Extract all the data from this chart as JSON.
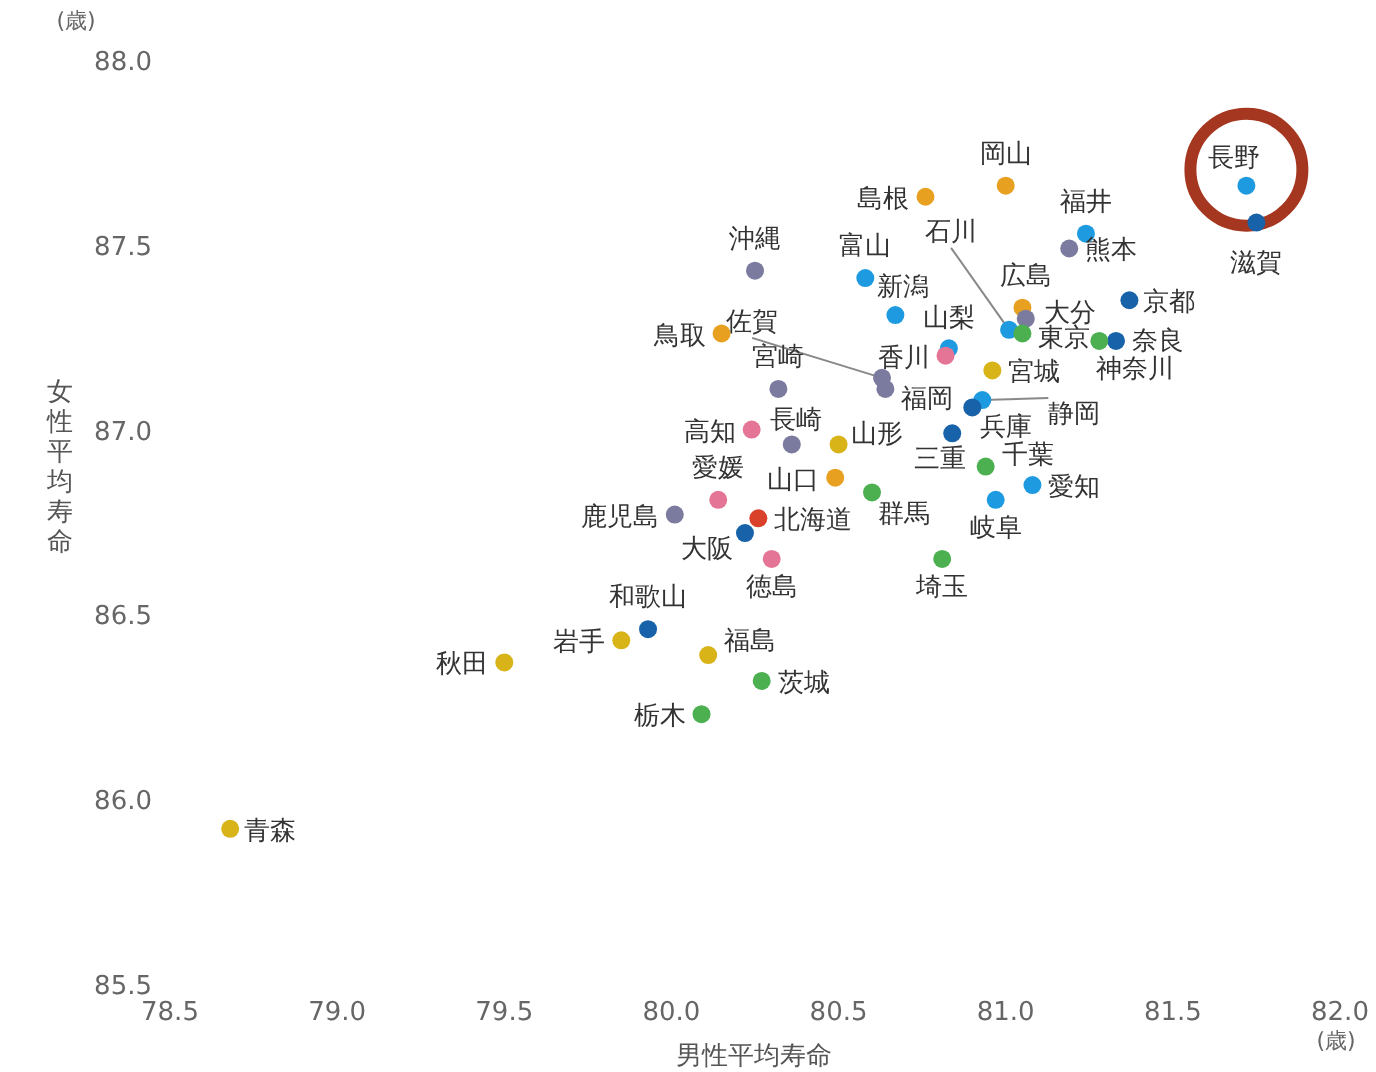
{
  "chart_data": {
    "type": "scatter",
    "xlabel": "男性平均寿命",
    "ylabel": "女性平均寿命",
    "xlim": [
      78.5,
      82.0
    ],
    "ylim": [
      85.5,
      88.0
    ],
    "xticks": [
      {
        "value": 78.5,
        "label": "78.5"
      },
      {
        "value": 79,
        "label": "79.0"
      },
      {
        "value": 79.5,
        "label": "79.5"
      },
      {
        "value": 80,
        "label": "80.0"
      },
      {
        "value": 80.5,
        "label": "80.5"
      },
      {
        "value": 81,
        "label": "81.0"
      },
      {
        "value": 81.5,
        "label": "81.5"
      },
      {
        "value": 82,
        "label": "82.0"
      }
    ],
    "yticks": [
      {
        "value": 85.5,
        "label": "85.5"
      },
      {
        "value": 86,
        "label": "86.0"
      },
      {
        "value": 86.5,
        "label": "86.5"
      },
      {
        "value": 87,
        "label": "87.0"
      },
      {
        "value": 87.5,
        "label": "87.5"
      },
      {
        "value": 88,
        "label": "88.0"
      }
    ],
    "annotations": [
      "(歳)",
      "(歳)"
    ],
    "grid": false,
    "marker": "circle",
    "series": [
      {
        "name": "長野",
        "color": "#1e9be0",
        "x": [
          81.72
        ],
        "values": [
          87.66
        ]
      },
      {
        "name": "滋賀",
        "color": "#1762a8",
        "x": [
          81.75
        ],
        "values": [
          87.56
        ]
      },
      {
        "name": "岡山",
        "color": "#e8a020",
        "x": [
          81.0
        ],
        "values": [
          87.66
        ]
      },
      {
        "name": "島根",
        "color": "#e8a020",
        "x": [
          80.76
        ],
        "values": [
          87.63
        ]
      },
      {
        "name": "福井",
        "color": "#1e9be0",
        "x": [
          81.24
        ],
        "values": [
          87.53
        ]
      },
      {
        "name": "熊本",
        "color": "#7a7b9e",
        "x": [
          81.19
        ],
        "values": [
          87.49
        ]
      },
      {
        "name": "石川",
        "color": "#1e9be0",
        "x": [
          81.01
        ],
        "values": [
          87.27
        ]
      },
      {
        "name": "広島",
        "color": "#e8a020",
        "x": [
          81.05
        ],
        "values": [
          87.33
        ]
      },
      {
        "name": "大分",
        "color": "#7a7b9e",
        "x": [
          81.06
        ],
        "values": [
          87.3
        ]
      },
      {
        "name": "東京",
        "color": "#4cb050",
        "x": [
          81.05
        ],
        "values": [
          87.26
        ]
      },
      {
        "name": "京都",
        "color": "#1762a8",
        "x": [
          81.37
        ],
        "values": [
          87.35
        ]
      },
      {
        "name": "奈良",
        "color": "#1762a8",
        "x": [
          81.33
        ],
        "values": [
          87.24
        ]
      },
      {
        "name": "神奈川",
        "color": "#4cb050",
        "x": [
          81.28
        ],
        "values": [
          87.24
        ]
      },
      {
        "name": "山梨",
        "color": "#1e9be0",
        "x": [
          80.83
        ],
        "values": [
          87.22
        ]
      },
      {
        "name": "香川",
        "color": "#e57597",
        "x": [
          80.82
        ],
        "values": [
          87.2
        ]
      },
      {
        "name": "宮城",
        "color": "#d8b419",
        "x": [
          80.96
        ],
        "values": [
          87.16
        ]
      },
      {
        "name": "福岡",
        "color": "#7a7b9e",
        "x": [
          80.64
        ],
        "values": [
          87.11
        ]
      },
      {
        "name": "佐賀",
        "color": "#7a7b9e",
        "x": [
          80.63
        ],
        "values": [
          87.14
        ]
      },
      {
        "name": "静岡",
        "color": "#1e9be0",
        "x": [
          80.93
        ],
        "values": [
          87.08
        ]
      },
      {
        "name": "兵庫",
        "color": "#1762a8",
        "x": [
          80.9
        ],
        "values": [
          87.06
        ]
      },
      {
        "name": "三重",
        "color": "#1762a8",
        "x": [
          80.84
        ],
        "values": [
          86.99
        ]
      },
      {
        "name": "千葉",
        "color": "#4cb050",
        "x": [
          80.94
        ],
        "values": [
          86.9
        ]
      },
      {
        "name": "愛知",
        "color": "#1e9be0",
        "x": [
          81.08
        ],
        "values": [
          86.85
        ]
      },
      {
        "name": "岐阜",
        "color": "#1e9be0",
        "x": [
          80.97
        ],
        "values": [
          86.81
        ]
      },
      {
        "name": "新潟",
        "color": "#1e9be0",
        "x": [
          80.67
        ],
        "values": [
          87.31
        ]
      },
      {
        "name": "富山",
        "color": "#1e9be0",
        "x": [
          80.58
        ],
        "values": [
          87.41
        ]
      },
      {
        "name": "沖縄",
        "color": "#7a7b9e",
        "x": [
          80.25
        ],
        "values": [
          87.43
        ]
      },
      {
        "name": "鳥取",
        "color": "#e8a020",
        "x": [
          80.15
        ],
        "values": [
          87.26
        ]
      },
      {
        "name": "宮崎",
        "color": "#7a7b9e",
        "x": [
          80.32
        ],
        "values": [
          87.11
        ]
      },
      {
        "name": "高知",
        "color": "#e57597",
        "x": [
          80.24
        ],
        "values": [
          87.0
        ]
      },
      {
        "name": "長崎",
        "color": "#7a7b9e",
        "x": [
          80.36
        ],
        "values": [
          86.96
        ]
      },
      {
        "name": "山形",
        "color": "#d8b419",
        "x": [
          80.5
        ],
        "values": [
          86.96
        ]
      },
      {
        "name": "山口",
        "color": "#e8a020",
        "x": [
          80.49
        ],
        "values": [
          86.87
        ]
      },
      {
        "name": "愛媛",
        "color": "#e57597",
        "x": [
          80.14
        ],
        "values": [
          86.81
        ]
      },
      {
        "name": "群馬",
        "color": "#4cb050",
        "x": [
          80.6
        ],
        "values": [
          86.83
        ]
      },
      {
        "name": "鹿児島",
        "color": "#7a7b9e",
        "x": [
          80.01
        ],
        "values": [
          86.77
        ]
      },
      {
        "name": "北海道",
        "color": "#d9412b",
        "x": [
          80.26
        ],
        "values": [
          86.76
        ]
      },
      {
        "name": "大阪",
        "color": "#1762a8",
        "x": [
          80.22
        ],
        "values": [
          86.72
        ]
      },
      {
        "name": "徳島",
        "color": "#e57597",
        "x": [
          80.3
        ],
        "values": [
          86.65
        ]
      },
      {
        "name": "埼玉",
        "color": "#4cb050",
        "x": [
          80.81
        ],
        "values": [
          86.65
        ]
      },
      {
        "name": "和歌山",
        "color": "#1762a8",
        "x": [
          79.93
        ],
        "values": [
          86.46
        ]
      },
      {
        "name": "岩手",
        "color": "#d8b419",
        "x": [
          79.85
        ],
        "values": [
          86.43
        ]
      },
      {
        "name": "秋田",
        "color": "#d8b419",
        "x": [
          79.5
        ],
        "values": [
          86.37
        ]
      },
      {
        "name": "福島",
        "color": "#d8b419",
        "x": [
          80.11
        ],
        "values": [
          86.39
        ]
      },
      {
        "name": "茨城",
        "color": "#4cb050",
        "x": [
          80.27
        ],
        "values": [
          86.32
        ]
      },
      {
        "name": "栃木",
        "color": "#4cb050",
        "x": [
          80.09
        ],
        "values": [
          86.23
        ]
      },
      {
        "name": "青森",
        "color": "#d8b419",
        "x": [
          78.68
        ],
        "values": [
          85.92
        ]
      }
    ]
  }
}
